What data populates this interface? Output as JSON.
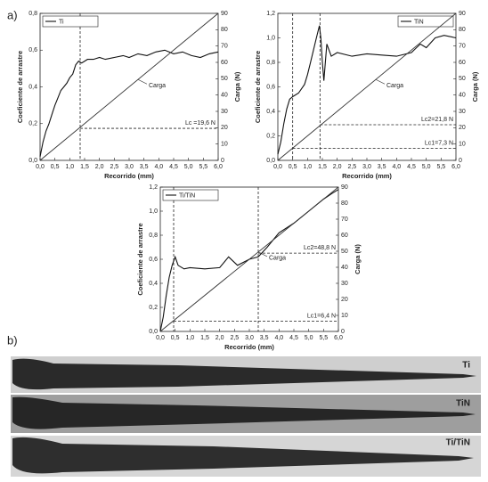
{
  "panel_labels": [
    "a)",
    "b)"
  ],
  "chart_data": [
    {
      "type": "line",
      "legend": "upper-left",
      "xlabel": "Recorrido (mm)",
      "ylabel": "Coeficiente de arrastre",
      "y2label": "Carga (N)",
      "xlim": [
        0,
        6
      ],
      "ylim": [
        0,
        0.8
      ],
      "y2lim": [
        0,
        90
      ],
      "xticks": [
        {
          "value": 0,
          "label": "0,0"
        },
        {
          "value": 0.5,
          "label": "0,5"
        },
        {
          "value": 1,
          "label": "1,0"
        },
        {
          "value": 1.5,
          "label": "1,5"
        },
        {
          "value": 2,
          "label": "2,0"
        },
        {
          "value": 2.5,
          "label": "2,5"
        },
        {
          "value": 3,
          "label": "3,0"
        },
        {
          "value": 3.5,
          "label": "3,5"
        },
        {
          "value": 4,
          "label": "4,0"
        },
        {
          "value": 4.5,
          "label": "4,5"
        },
        {
          "value": 5,
          "label": "5,0"
        },
        {
          "value": 5.5,
          "label": "5,5"
        },
        {
          "value": 6,
          "label": "6,0"
        }
      ],
      "yticks": [
        {
          "value": 0,
          "label": "0,0"
        },
        {
          "value": 0.2,
          "label": "0,2"
        },
        {
          "value": 0.4,
          "label": "0,4"
        },
        {
          "value": 0.6,
          "label": "0,6"
        },
        {
          "value": 0.8,
          "label": "0,8"
        }
      ],
      "y2ticks": [
        0,
        10,
        20,
        30,
        40,
        50,
        60,
        70,
        80,
        90
      ],
      "series": [
        {
          "name": "Ti",
          "color": "#111111",
          "x": [
            0,
            0.1,
            0.2,
            0.3,
            0.4,
            0.5,
            0.6,
            0.7,
            0.8,
            0.9,
            1.0,
            1.1,
            1.2,
            1.3,
            1.4,
            1.6,
            1.8,
            2.0,
            2.2,
            2.5,
            2.8,
            3.0,
            3.3,
            3.6,
            3.9,
            4.2,
            4.5,
            4.8,
            5.1,
            5.4,
            5.7,
            6.0
          ],
          "values": [
            0.02,
            0.1,
            0.16,
            0.2,
            0.25,
            0.3,
            0.34,
            0.38,
            0.4,
            0.42,
            0.45,
            0.47,
            0.52,
            0.54,
            0.53,
            0.55,
            0.55,
            0.56,
            0.55,
            0.56,
            0.57,
            0.56,
            0.58,
            0.57,
            0.59,
            0.6,
            0.58,
            0.59,
            0.57,
            0.56,
            0.58,
            0.59
          ]
        },
        {
          "name": "Carga",
          "color": "#333333",
          "axis": "y2",
          "x": [
            0,
            6
          ],
          "values": [
            0,
            90
          ]
        }
      ],
      "critical_loads": [
        {
          "label": "Lc =19,6 N",
          "value": 19.6,
          "x": 1.35
        }
      ]
    },
    {
      "type": "line",
      "legend": "upper-right",
      "xlabel": "Recorrido (mm)",
      "ylabel": "Coeficiente de arrastre",
      "y2label": "Carga (N)",
      "xlim": [
        0,
        6
      ],
      "ylim": [
        0,
        1.2
      ],
      "y2lim": [
        0,
        90
      ],
      "xticks": [
        {
          "value": 0,
          "label": "0,0"
        },
        {
          "value": 0.5,
          "label": "0,5"
        },
        {
          "value": 1,
          "label": "1,0"
        },
        {
          "value": 1.5,
          "label": "1,5"
        },
        {
          "value": 2,
          "label": "2,0"
        },
        {
          "value": 2.5,
          "label": "2,5"
        },
        {
          "value": 3,
          "label": "3,0"
        },
        {
          "value": 3.5,
          "label": "3,5"
        },
        {
          "value": 4,
          "label": "4,0"
        },
        {
          "value": 4.5,
          "label": "4,5"
        },
        {
          "value": 5,
          "label": "5,0"
        },
        {
          "value": 5.5,
          "label": "5,5"
        },
        {
          "value": 6,
          "label": "6,0"
        }
      ],
      "yticks": [
        {
          "value": 0,
          "label": "0,0"
        },
        {
          "value": 0.2,
          "label": "0,2"
        },
        {
          "value": 0.4,
          "label": "0,4"
        },
        {
          "value": 0.6,
          "label": "0,6"
        },
        {
          "value": 0.8,
          "label": "0,8"
        },
        {
          "value": 1,
          "label": "1,0"
        },
        {
          "value": 1.2,
          "label": "1,2"
        }
      ],
      "y2ticks": [
        0,
        10,
        20,
        30,
        40,
        50,
        60,
        70,
        80,
        90
      ],
      "series": [
        {
          "name": "TiN",
          "color": "#111111",
          "x": [
            0,
            0.1,
            0.2,
            0.3,
            0.4,
            0.5,
            0.7,
            0.9,
            1.0,
            1.1,
            1.2,
            1.3,
            1.4,
            1.45,
            1.5,
            1.55,
            1.65,
            1.8,
            2.0,
            2.5,
            3.0,
            3.5,
            4.0,
            4.5,
            4.8,
            5.0,
            5.3,
            5.6,
            6.0
          ],
          "values": [
            0.05,
            0.15,
            0.3,
            0.42,
            0.5,
            0.52,
            0.55,
            0.62,
            0.7,
            0.8,
            0.9,
            1.0,
            1.1,
            1.0,
            0.8,
            0.65,
            0.95,
            0.85,
            0.88,
            0.85,
            0.87,
            0.86,
            0.85,
            0.88,
            0.95,
            0.92,
            1.0,
            1.02,
            1.0
          ]
        },
        {
          "name": "Carga",
          "color": "#333333",
          "axis": "y2",
          "x": [
            0,
            6
          ],
          "values": [
            0,
            90
          ]
        }
      ],
      "critical_loads": [
        {
          "label": "Lc1=7,3 N",
          "value": 7.3,
          "x": 0.5
        },
        {
          "label": "Lc2=21,8 N",
          "value": 21.8,
          "x": 1.42
        }
      ]
    },
    {
      "type": "line",
      "legend": "upper-left",
      "xlabel": "Recorrido (mm)",
      "ylabel": "Coeficiente de arrastre",
      "y2label": "Carga (N)",
      "xlim": [
        0,
        6
      ],
      "ylim": [
        0,
        1.2
      ],
      "y2lim": [
        0,
        90
      ],
      "xticks": [
        {
          "value": 0,
          "label": "0,0"
        },
        {
          "value": 0.5,
          "label": "0,5"
        },
        {
          "value": 1,
          "label": "1,0"
        },
        {
          "value": 1.5,
          "label": "1,5"
        },
        {
          "value": 2,
          "label": "2,0"
        },
        {
          "value": 2.5,
          "label": "2,5"
        },
        {
          "value": 3,
          "label": "3,0"
        },
        {
          "value": 3.5,
          "label": "3,5"
        },
        {
          "value": 4,
          "label": "4,0"
        },
        {
          "value": 4.5,
          "label": "4,5"
        },
        {
          "value": 5,
          "label": "5,0"
        },
        {
          "value": 5.5,
          "label": "5,5"
        },
        {
          "value": 6,
          "label": "6,0"
        }
      ],
      "yticks": [
        {
          "value": 0,
          "label": "0,0"
        },
        {
          "value": 0.2,
          "label": "0,2"
        },
        {
          "value": 0.4,
          "label": "0,4"
        },
        {
          "value": 0.6,
          "label": "0,6"
        },
        {
          "value": 0.8,
          "label": "0,8"
        },
        {
          "value": 1,
          "label": "1,0"
        },
        {
          "value": 1.2,
          "label": "1,2"
        }
      ],
      "y2ticks": [
        0,
        10,
        20,
        30,
        40,
        50,
        60,
        70,
        80,
        90
      ],
      "series": [
        {
          "name": "Ti/TiN",
          "color": "#111111",
          "x": [
            0,
            0.1,
            0.2,
            0.3,
            0.4,
            0.5,
            0.6,
            0.8,
            1.0,
            1.5,
            2.0,
            2.3,
            2.6,
            3.0,
            3.3,
            3.6,
            4.0,
            4.5,
            5.0,
            5.5,
            5.8,
            6.0
          ],
          "values": [
            0,
            0.12,
            0.3,
            0.45,
            0.55,
            0.62,
            0.55,
            0.52,
            0.53,
            0.52,
            0.53,
            0.62,
            0.55,
            0.6,
            0.62,
            0.7,
            0.82,
            0.9,
            1.0,
            1.1,
            1.15,
            1.18
          ]
        },
        {
          "name": "Carga",
          "color": "#333333",
          "axis": "y2",
          "x": [
            0,
            6
          ],
          "values": [
            0,
            90
          ]
        }
      ],
      "critical_loads": [
        {
          "label": "Lc1=6,4 N",
          "value": 6.4,
          "x": 0.45
        },
        {
          "label": "Lc2=48,8 N",
          "value": 48.8,
          "x": 3.3
        }
      ]
    }
  ],
  "images": [
    {
      "label": "Ti"
    },
    {
      "label": "TiN"
    },
    {
      "label": "Ti/TiN"
    }
  ]
}
